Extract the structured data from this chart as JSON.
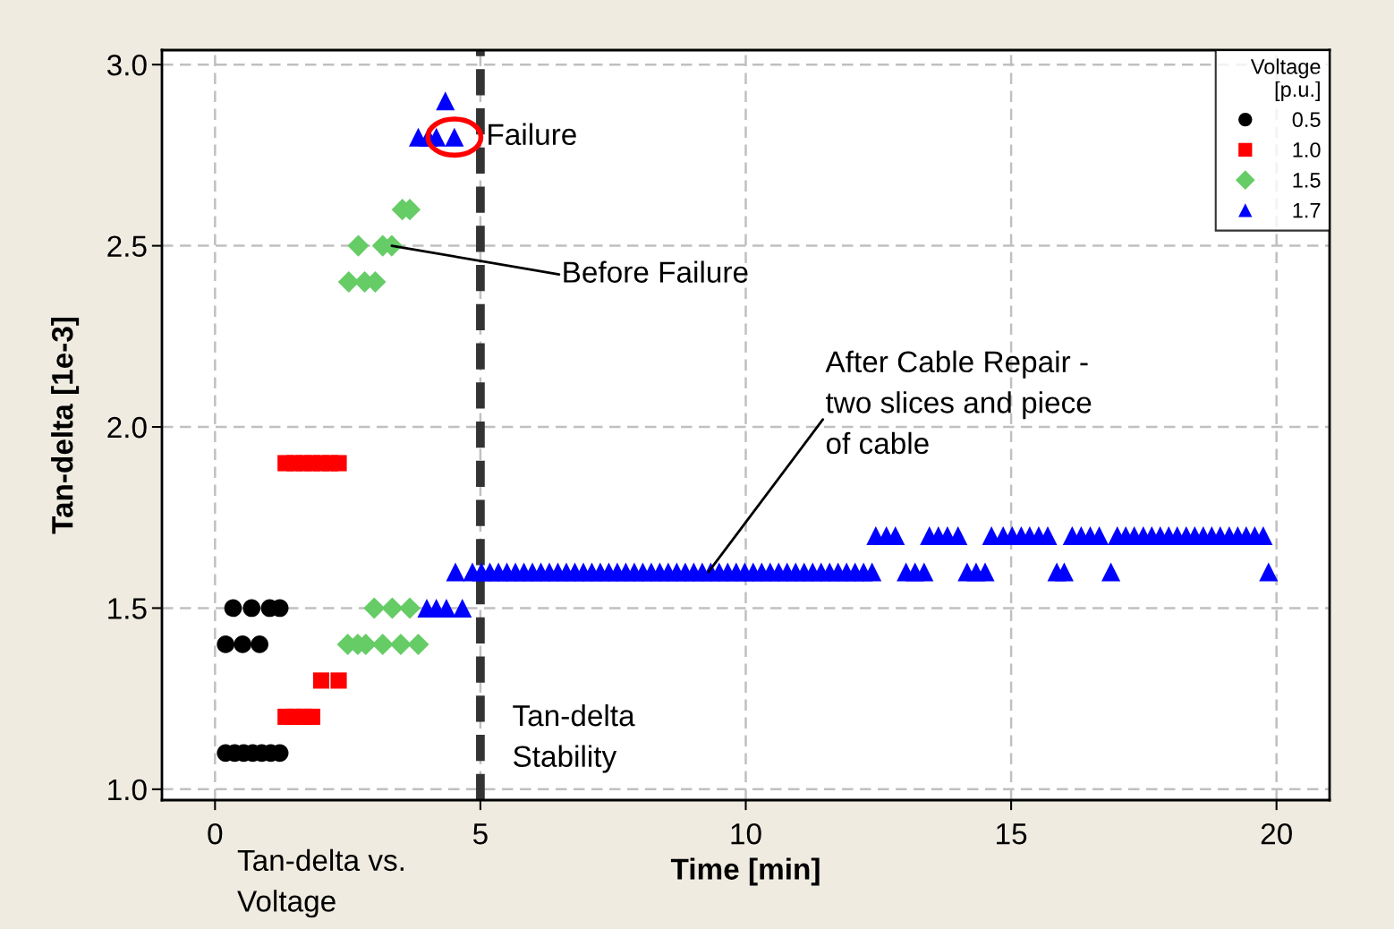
{
  "chart_data": {
    "type": "scatter",
    "xlabel": "Time [min]",
    "ylabel": "Tan-delta [1e-3]",
    "legend_title": "Voltage\n[p.u.]",
    "legend": "top right",
    "grid": true,
    "xlim": [
      -1,
      21
    ],
    "ylim": [
      0.97,
      3.04
    ],
    "xticks": [
      0,
      5,
      10,
      15,
      20
    ],
    "yticks": [
      {
        "value": 1,
        "label": "1.0"
      },
      {
        "value": 1.5,
        "label": "1.5"
      },
      {
        "value": 2,
        "label": "2.0"
      },
      {
        "value": 2.5,
        "label": "2.5"
      },
      {
        "value": 3,
        "label": "3.0"
      }
    ],
    "series": [
      {
        "name": "0.5",
        "color": "#000000",
        "marker": "circle",
        "x": [
          0.34,
          0.69,
          1.03,
          1.22,
          0.2,
          0.52,
          0.84,
          0.2,
          0.37,
          0.54,
          0.71,
          0.88,
          1.05,
          1.22
        ],
        "values": [
          1.5,
          1.5,
          1.5,
          1.5,
          1.4,
          1.4,
          1.4,
          1.1,
          1.1,
          1.1,
          1.1,
          1.1,
          1.1,
          1.1
        ]
      },
      {
        "name": "1.0",
        "color": "#ff0000",
        "marker": "square",
        "x": [
          1.33,
          1.5,
          1.67,
          1.83,
          2.0,
          2.17,
          2.33,
          2.0,
          2.33,
          1.33,
          1.5,
          1.67,
          1.83
        ],
        "values": [
          1.9,
          1.9,
          1.9,
          1.9,
          1.9,
          1.9,
          1.9,
          1.3,
          1.3,
          1.2,
          1.2,
          1.2,
          1.2
        ]
      },
      {
        "name": "1.5",
        "color": "#66cc66",
        "marker": "diamond",
        "x": [
          3.0,
          3.34,
          3.67,
          2.5,
          2.69,
          2.84,
          3.16,
          3.5,
          3.83,
          3.53,
          3.67,
          2.7,
          3.16,
          3.33,
          2.52,
          2.82,
          3.02
        ],
        "values": [
          1.5,
          1.5,
          1.5,
          1.4,
          1.4,
          1.4,
          1.4,
          1.4,
          1.4,
          2.6,
          2.6,
          2.5,
          2.5,
          2.5,
          2.4,
          2.4,
          2.4
        ]
      },
      {
        "name": "1.7",
        "color": "#0000ff",
        "marker": "triangle",
        "x": [
          4.34,
          3.83,
          4.02,
          4.17,
          4.51,
          3.99,
          4.17,
          4.36,
          4.66,
          4.53,
          4.85,
          5.02,
          5.18,
          5.34,
          5.5,
          5.66,
          5.82,
          5.98,
          6.14,
          6.3,
          6.46,
          6.62,
          6.78,
          6.94,
          7.1,
          7.26,
          7.42,
          7.58,
          7.74,
          7.9,
          8.06,
          8.22,
          8.38,
          8.54,
          8.7,
          8.86,
          9.02,
          9.18,
          9.34,
          9.5,
          9.66,
          9.82,
          9.98,
          10.14,
          10.3,
          10.46,
          10.62,
          10.78,
          10.94,
          11.1,
          11.26,
          11.42,
          11.58,
          11.74,
          11.9,
          12.06,
          12.22,
          12.38,
          13.02,
          13.19,
          13.36,
          14.17,
          14.34,
          14.51,
          15.86,
          16.0,
          16.88,
          19.85,
          12.45,
          12.65,
          12.82,
          13.46,
          13.63,
          13.8,
          14.0,
          14.63,
          14.85,
          15.02,
          15.19,
          15.35,
          15.52,
          15.69,
          16.15,
          16.32,
          16.49,
          16.66,
          17.0,
          17.16,
          17.32,
          17.49,
          17.65,
          17.81,
          17.97,
          18.13,
          18.3,
          18.46,
          18.62,
          18.78,
          18.94,
          19.11,
          19.27,
          19.43,
          19.59,
          19.75
        ],
        "values": [
          2.9,
          2.8,
          2.8,
          2.8,
          2.8,
          1.5,
          1.5,
          1.5,
          1.5,
          1.6,
          1.6,
          1.6,
          1.6,
          1.6,
          1.6,
          1.6,
          1.6,
          1.6,
          1.6,
          1.6,
          1.6,
          1.6,
          1.6,
          1.6,
          1.6,
          1.6,
          1.6,
          1.6,
          1.6,
          1.6,
          1.6,
          1.6,
          1.6,
          1.6,
          1.6,
          1.6,
          1.6,
          1.6,
          1.6,
          1.6,
          1.6,
          1.6,
          1.6,
          1.6,
          1.6,
          1.6,
          1.6,
          1.6,
          1.6,
          1.6,
          1.6,
          1.6,
          1.6,
          1.6,
          1.6,
          1.6,
          1.6,
          1.6,
          1.6,
          1.6,
          1.6,
          1.6,
          1.6,
          1.6,
          1.6,
          1.6,
          1.6,
          1.6,
          1.7,
          1.7,
          1.7,
          1.7,
          1.7,
          1.7,
          1.7,
          1.7,
          1.7,
          1.7,
          1.7,
          1.7,
          1.7,
          1.7,
          1.7,
          1.7,
          1.7,
          1.7,
          1.7,
          1.7,
          1.7,
          1.7,
          1.7,
          1.7,
          1.7,
          1.7,
          1.7,
          1.7,
          1.7,
          1.7,
          1.7,
          1.7,
          1.7,
          1.7,
          1.7,
          1.7
        ]
      }
    ],
    "ref_lines": [
      {
        "axis": "x",
        "value": 5,
        "label": null,
        "color": "#333333",
        "line_style": "dashed"
      }
    ],
    "annotations": [
      {
        "text": "Failure",
        "x": 4.51,
        "y": 2.8
      },
      {
        "text": "Before Failure",
        "x": 3.33,
        "y": 2.5
      },
      {
        "text": "After Cable Repair -\ntwo slices and piece\nof cable",
        "x": 9.3,
        "y": 1.6
      },
      "Tan-delta\nStability",
      "Tan-delta vs.\nVoltage"
    ]
  }
}
